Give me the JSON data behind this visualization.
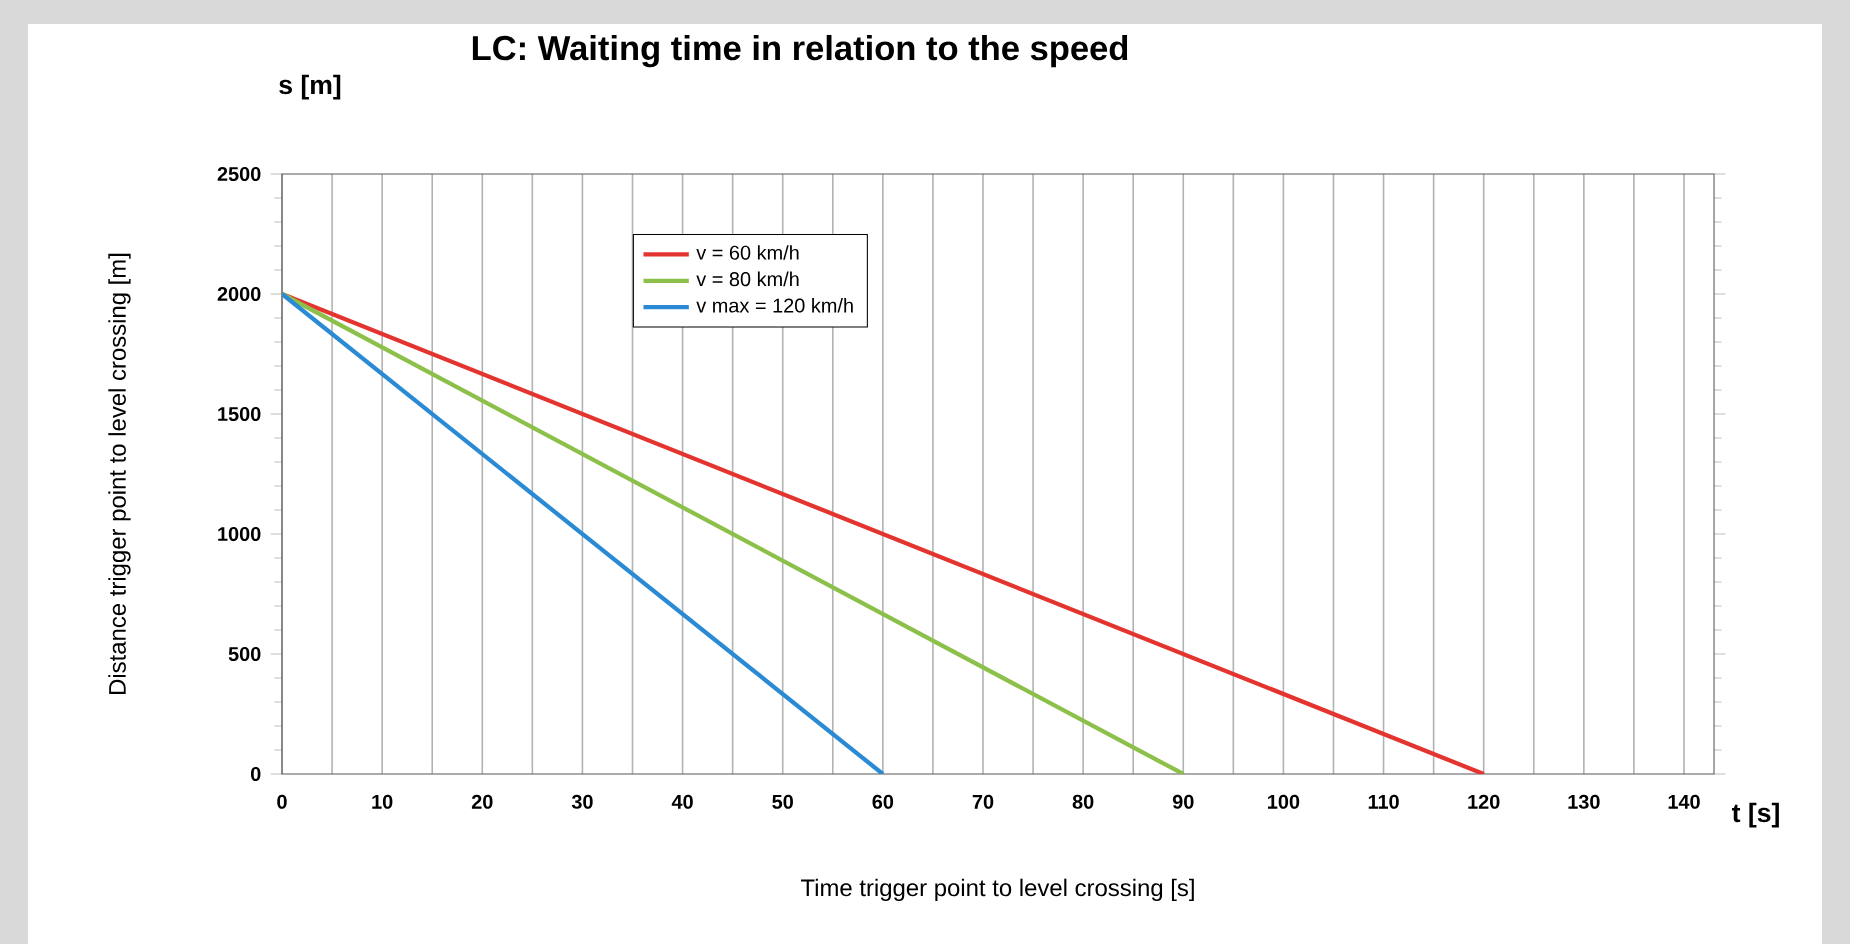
{
  "chart_data": {
    "type": "line",
    "title": "LC: Waiting time in relation to the speed",
    "xlabel": "Time trigger point to level crossing [s]",
    "ylabel": "Distance trigger point to level crossing [m]",
    "annotations": [
      "s [m]",
      "t [s]"
    ],
    "series": [
      {
        "name": "v = 60 km/h",
        "color": "#e3342f",
        "x": [
          0,
          120
        ],
        "values": [
          2000,
          0
        ]
      },
      {
        "name": "v = 80 km/h",
        "color": "#8cc04a",
        "x": [
          0,
          90
        ],
        "values": [
          2000,
          0
        ]
      },
      {
        "name": "v max = 120 km/h",
        "color": "#2a8ad4",
        "x": [
          0,
          60
        ],
        "values": [
          2000,
          0
        ]
      }
    ],
    "xlim": [
      0,
      143
    ],
    "ylim": [
      0,
      2500
    ],
    "xticks": [
      0,
      {
        "value": 5,
        "label": null
      },
      10,
      {
        "value": 15,
        "label": null
      },
      20,
      {
        "value": 25,
        "label": null
      },
      30,
      {
        "value": 35,
        "label": null
      },
      40,
      {
        "value": 45,
        "label": null
      },
      50,
      {
        "value": 55,
        "label": null
      },
      60,
      {
        "value": 65,
        "label": null
      },
      70,
      {
        "value": 75,
        "label": null
      },
      80,
      {
        "value": 85,
        "label": null
      },
      90,
      {
        "value": 95,
        "label": null
      },
      100,
      {
        "value": 105,
        "label": null
      },
      110,
      {
        "value": 115,
        "label": null
      },
      120,
      {
        "value": 125,
        "label": null
      },
      130,
      {
        "value": 135,
        "label": null
      },
      140
    ],
    "yticks": [
      0,
      500,
      1000,
      1500,
      2000,
      2500
    ],
    "grid": "x",
    "legend": "top left",
    "marker": "none",
    "line_style": "solid"
  }
}
